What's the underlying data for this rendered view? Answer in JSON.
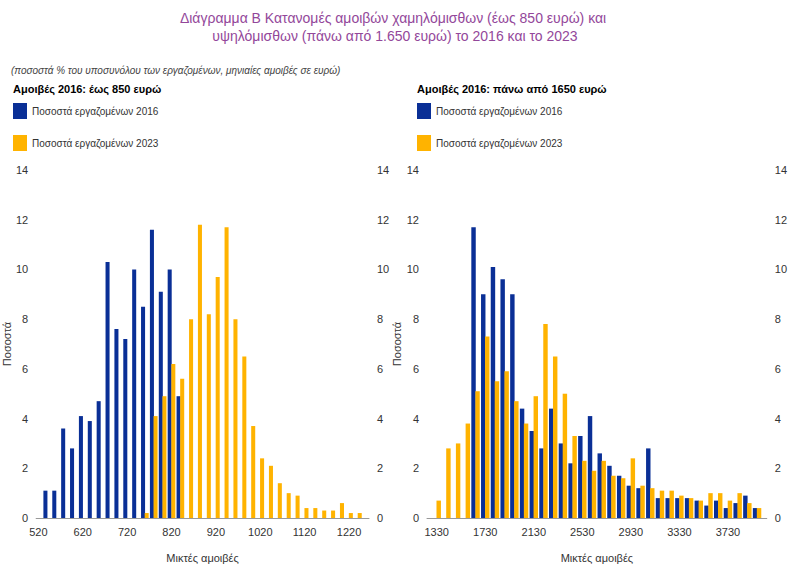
{
  "title": "Διάγραμμα Β Κατανομές αμοιβών χαμηλόμισθων (έως 850 ευρώ) και υψηλόμισθων (πάνω από 1.650 ευρώ) το 2016 και το 2023",
  "subtitle": "(ποσοστά % του υποσυνόλου των εργαζομένων, μηνιαίες αμοιβές σε ευρώ)",
  "chart_data": [
    {
      "type": "bar",
      "title": "Αμοιβές 2016: έως 850 ευρώ",
      "xlabel": "Μικτές αμοιβές",
      "ylabel": "Ποσοστά",
      "xlim": [
        515,
        1265
      ],
      "xticks": [
        520,
        620,
        720,
        820,
        920,
        1020,
        1120,
        1220
      ],
      "ylim": [
        0,
        14
      ],
      "yticks": [
        0,
        2,
        4,
        6,
        8,
        10,
        12,
        14
      ],
      "y2lim": [
        0,
        14
      ],
      "y2ticks": [
        0,
        2,
        4,
        6,
        8,
        10,
        12,
        14
      ],
      "grid": false,
      "legend": "top-left",
      "series": [
        {
          "name": "Ποσοστά εργαζομένων 2016",
          "color": "#0a2f96",
          "x": [
            540,
            560,
            580,
            600,
            620,
            640,
            660,
            680,
            700,
            720,
            740,
            760,
            780,
            800,
            820,
            840
          ],
          "values": [
            1.1,
            1.1,
            3.6,
            2.8,
            4.1,
            3.9,
            4.7,
            10.3,
            7.6,
            7.2,
            10.0,
            8.5,
            11.6,
            9.1,
            10.0,
            4.9
          ]
        },
        {
          "name": "Ποσοστά εργαζομένων 2023",
          "color": "#ffb300",
          "x": [
            760,
            780,
            800,
            820,
            840,
            860,
            880,
            900,
            920,
            940,
            960,
            980,
            1000,
            1020,
            1040,
            1060,
            1080,
            1100,
            1120,
            1140,
            1160,
            1180,
            1200,
            1220,
            1240
          ],
          "values": [
            0.2,
            4.1,
            4.9,
            6.2,
            5.6,
            8.0,
            11.8,
            8.2,
            9.7,
            11.7,
            8.0,
            6.5,
            3.7,
            2.4,
            2.1,
            1.4,
            1.0,
            0.9,
            0.4,
            0.4,
            0.3,
            0.3,
            0.6,
            0.2,
            0.2
          ]
        }
      ]
    },
    {
      "type": "bar",
      "title": "Αμοιβές 2016: πάνω από 1650 ευρώ",
      "xlabel": "Μικτές αμοιβές",
      "ylabel": "Ποσοστά",
      "xlim": [
        1250,
        4050
      ],
      "xticks": [
        1330,
        1730,
        2130,
        2530,
        2930,
        3330,
        3730
      ],
      "ylim": [
        0,
        14
      ],
      "yticks": [
        0,
        2,
        4,
        6,
        8,
        10,
        12,
        14
      ],
      "y2lim": [
        0,
        14
      ],
      "y2ticks": [
        0,
        2,
        4,
        6,
        8,
        10,
        12,
        14
      ],
      "grid": false,
      "legend": "top-left",
      "series": [
        {
          "name": "Ποσοστά εργαζομένων 2016",
          "color": "#0a2f96",
          "x": [
            1650,
            1730,
            1810,
            1890,
            1970,
            2050,
            2130,
            2210,
            2290,
            2370,
            2450,
            2530,
            2610,
            2690,
            2770,
            2850,
            2930,
            3010,
            3090,
            3170,
            3250,
            3330,
            3410,
            3490,
            3570,
            3650,
            3730,
            3810,
            3890,
            3970
          ],
          "values": [
            11.7,
            9.0,
            10.1,
            9.6,
            9.0,
            4.4,
            3.5,
            2.8,
            4.4,
            3.0,
            2.2,
            3.3,
            4.1,
            2.6,
            2.1,
            1.7,
            1.3,
            1.2,
            2.8,
            0.8,
            0.8,
            0.8,
            0.8,
            0.7,
            0.5,
            0.7,
            0.4,
            0.6,
            0.9,
            0.4
          ]
        },
        {
          "name": "Ποσοστά εργαζομένων 2023",
          "color": "#ffb300",
          "x": [
            1330,
            1410,
            1490,
            1570,
            1650,
            1730,
            1810,
            1890,
            1970,
            2050,
            2130,
            2210,
            2290,
            2370,
            2450,
            2530,
            2610,
            2690,
            2770,
            2850,
            2930,
            3010,
            3090,
            3170,
            3250,
            3330,
            3410,
            3490,
            3570,
            3650,
            3730,
            3810,
            3890,
            3970
          ],
          "values": [
            0.7,
            2.8,
            3.0,
            3.8,
            5.1,
            7.3,
            5.5,
            5.9,
            4.7,
            3.8,
            4.9,
            7.8,
            6.5,
            5.0,
            3.3,
            2.3,
            1.9,
            2.3,
            1.7,
            1.6,
            2.4,
            1.3,
            1.2,
            1.1,
            1.1,
            0.9,
            0.8,
            0.7,
            1.0,
            1.0,
            0.7,
            1.0,
            0.6,
            0.4
          ]
        }
      ]
    }
  ]
}
